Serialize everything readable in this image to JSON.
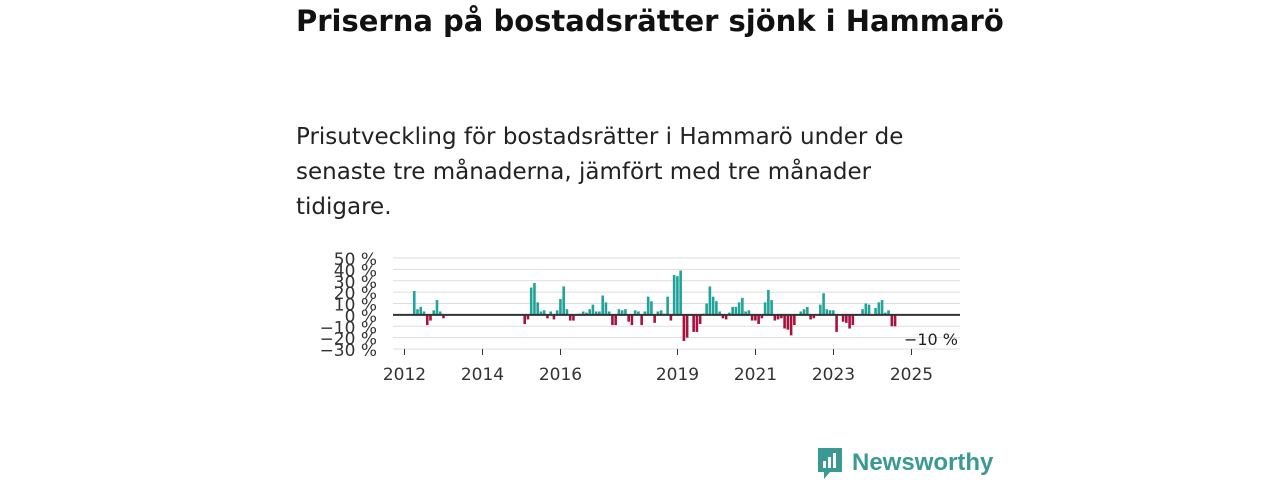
{
  "title": "Priserna på bostadsrätter sjönk i Hammarö",
  "subtitle": "Prisutveckling för bostadsrätter i Hammarö under de senaste tre månaderna, jämfört med tre månader tidigare.",
  "brand": {
    "name": "Newsworthy",
    "color": "#3a9a93"
  },
  "chart_data": {
    "type": "bar",
    "title": "",
    "xlabel": "",
    "ylabel": "",
    "x_start": 2012.25,
    "x_step": 0.0833,
    "ylim": [
      -30,
      50
    ],
    "y_ticks": [
      50,
      40,
      30,
      20,
      10,
      0,
      -10,
      -20,
      -30
    ],
    "y_tick_labels": [
      "50 %",
      "40 %",
      "30 %",
      "20 %",
      "10 %",
      "0 %",
      "−10 %",
      "−20 %",
      "−30 %"
    ],
    "x_ticks": [
      2012,
      2014,
      2016,
      2019,
      2021,
      2023,
      2025
    ],
    "x_tick_labels": [
      "2012",
      "2014",
      "2016",
      "2019",
      "2021",
      "2023",
      "2025"
    ],
    "positive_color": "#1fa39a",
    "negative_color": "#a8123e",
    "last_value_label": "−10 %",
    "values": [
      21,
      5,
      7,
      3,
      -9,
      -5,
      4,
      13,
      3,
      -3,
      0,
      0,
      0,
      0,
      0,
      0,
      0,
      0,
      0,
      0,
      0,
      0,
      0,
      0,
      0,
      0,
      0,
      0,
      0,
      0,
      0,
      0,
      0,
      0,
      -8,
      -4,
      24,
      28,
      11,
      3,
      4,
      -3,
      3,
      -4,
      4,
      14,
      25,
      5,
      -5,
      -5,
      0,
      1,
      3,
      2,
      5,
      9,
      3,
      3,
      17,
      11,
      3,
      -9,
      -9,
      5,
      4,
      5,
      -6,
      -9,
      4,
      3,
      -9,
      3,
      16,
      12,
      -7,
      3,
      4,
      1,
      16,
      -5,
      35,
      34,
      39,
      -23,
      -20,
      0,
      -15,
      -15,
      -8,
      1,
      10,
      25,
      16,
      12,
      3,
      -3,
      -4,
      2,
      7,
      7,
      11,
      15,
      3,
      4,
      -5,
      -5,
      -8,
      -3,
      11,
      22,
      13,
      -5,
      -4,
      -3,
      -12,
      -13,
      -18,
      -9,
      0,
      3,
      5,
      7,
      -4,
      -3,
      0,
      9,
      19,
      5,
      4,
      4,
      -15,
      0,
      -6,
      -7,
      -12,
      -9,
      0,
      0,
      5,
      10,
      9,
      0,
      6,
      11,
      13,
      2,
      4,
      -10,
      -10
    ]
  }
}
